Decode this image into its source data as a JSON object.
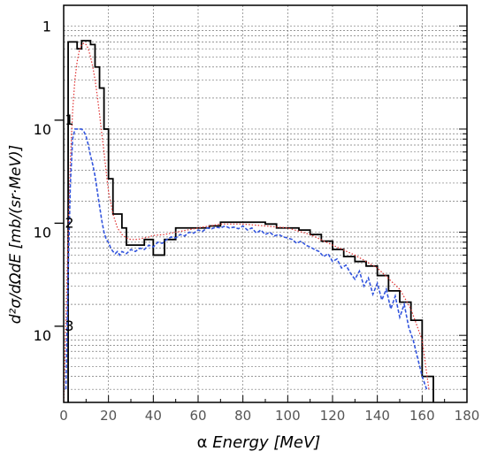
{
  "chart_data": {
    "type": "line",
    "xlabel_symbol": "α",
    "xlabel_text": "Energy [MeV]",
    "ylabel": "d²σ/dΩdE [mb/(sr·MeV)]",
    "xlim": [
      0,
      180
    ],
    "ylim_log10": [
      -3.65,
      0.2
    ],
    "yscale": "log",
    "grid": true,
    "x_ticks": [
      0,
      20,
      40,
      60,
      80,
      100,
      120,
      140,
      160,
      180
    ],
    "y_tick_labels": [
      {
        "value": 1,
        "base": "1",
        "exp": ""
      },
      {
        "value": 0.1,
        "base": "10",
        "exp": "−1"
      },
      {
        "value": 0.01,
        "base": "10",
        "exp": "−2"
      },
      {
        "value": 0.001,
        "base": "10",
        "exp": "−3"
      }
    ],
    "series": [
      {
        "style": "histogram",
        "color": "#000000",
        "edges": [
          2,
          4,
          6,
          8,
          10,
          12,
          14,
          16,
          18,
          20,
          22,
          24,
          26,
          28,
          30,
          32,
          34,
          36,
          38,
          40,
          45,
          50,
          55,
          60,
          65,
          70,
          75,
          80,
          85,
          90,
          95,
          100,
          105,
          110,
          115,
          120,
          125,
          130,
          135,
          140,
          145,
          150,
          155,
          160,
          165
        ],
        "values": [
          0.7,
          0.7,
          0.6,
          0.72,
          0.72,
          0.66,
          0.4,
          0.25,
          0.1,
          0.033,
          0.015,
          0.015,
          0.011,
          0.0075,
          0.0075,
          0.0075,
          0.0075,
          0.0085,
          0.0085,
          0.006,
          0.0085,
          0.011,
          0.011,
          0.011,
          0.0115,
          0.0125,
          0.0125,
          0.0125,
          0.0125,
          0.012,
          0.011,
          0.011,
          0.0105,
          0.0095,
          0.0082,
          0.0068,
          0.0058,
          0.0052,
          0.0047,
          0.0038,
          0.0027,
          0.0021,
          0.0014,
          0.0004
        ]
      },
      {
        "style": "dotted",
        "color": "#e03030",
        "x": [
          0,
          1,
          2,
          3,
          4,
          5,
          6,
          7,
          8,
          9,
          10,
          11,
          12,
          13,
          14,
          15,
          16,
          17,
          18,
          19,
          20,
          22,
          24,
          26,
          28,
          30,
          32,
          34,
          36,
          38,
          40,
          45,
          50,
          60,
          70,
          80,
          90,
          100,
          110,
          120,
          130,
          140,
          150,
          155,
          160,
          163
        ],
        "y": [
          0.0002,
          0.0015,
          0.01,
          0.05,
          0.15,
          0.3,
          0.45,
          0.58,
          0.66,
          0.68,
          0.66,
          0.6,
          0.5,
          0.4,
          0.3,
          0.21,
          0.14,
          0.09,
          0.06,
          0.038,
          0.025,
          0.015,
          0.011,
          0.0095,
          0.0088,
          0.0085,
          0.0085,
          0.0086,
          0.0088,
          0.009,
          0.0093,
          0.0095,
          0.01,
          0.011,
          0.012,
          0.012,
          0.0115,
          0.011,
          0.0095,
          0.0075,
          0.006,
          0.0045,
          0.0028,
          0.0018,
          0.0009,
          0.0003
        ]
      },
      {
        "style": "dashed",
        "color": "#3355dd",
        "x": [
          1,
          2,
          3,
          4,
          5,
          6,
          7,
          8,
          9,
          10,
          11,
          12,
          13,
          14,
          15,
          16,
          17,
          18,
          19,
          20,
          21,
          22,
          23,
          24,
          25,
          26,
          28,
          30,
          32,
          34,
          36,
          38,
          40,
          42,
          44,
          46,
          48,
          50,
          52,
          54,
          56,
          58,
          60,
          62,
          64,
          66,
          68,
          70,
          72,
          74,
          76,
          78,
          80,
          82,
          84,
          86,
          88,
          90,
          92,
          94,
          96,
          98,
          100,
          102,
          104,
          106,
          108,
          110,
          112,
          114,
          116,
          118,
          120,
          122,
          124,
          126,
          128,
          130,
          132,
          134,
          136,
          138,
          140,
          142,
          144,
          146,
          148,
          150,
          152,
          154,
          156,
          158,
          160,
          162
        ],
        "y": [
          0.0003,
          0.004,
          0.03,
          0.08,
          0.1,
          0.1,
          0.1,
          0.1,
          0.095,
          0.085,
          0.07,
          0.055,
          0.045,
          0.035,
          0.025,
          0.018,
          0.013,
          0.01,
          0.0085,
          0.008,
          0.007,
          0.0065,
          0.0062,
          0.0065,
          0.006,
          0.0065,
          0.0062,
          0.0068,
          0.0065,
          0.007,
          0.0068,
          0.0075,
          0.0072,
          0.008,
          0.0078,
          0.0085,
          0.009,
          0.0088,
          0.0095,
          0.0092,
          0.01,
          0.0098,
          0.0105,
          0.0102,
          0.011,
          0.0108,
          0.0112,
          0.011,
          0.0115,
          0.011,
          0.0112,
          0.0108,
          0.0115,
          0.0105,
          0.011,
          0.0098,
          0.0105,
          0.0095,
          0.01,
          0.0092,
          0.0095,
          0.009,
          0.0088,
          0.0085,
          0.0078,
          0.0082,
          0.0075,
          0.0072,
          0.0068,
          0.0065,
          0.0058,
          0.0062,
          0.0052,
          0.0055,
          0.0045,
          0.0048,
          0.004,
          0.0035,
          0.0042,
          0.003,
          0.0036,
          0.0025,
          0.0032,
          0.0022,
          0.0028,
          0.0018,
          0.0024,
          0.0015,
          0.002,
          0.0012,
          0.0009,
          0.0006,
          0.0004,
          0.0003
        ]
      }
    ]
  }
}
